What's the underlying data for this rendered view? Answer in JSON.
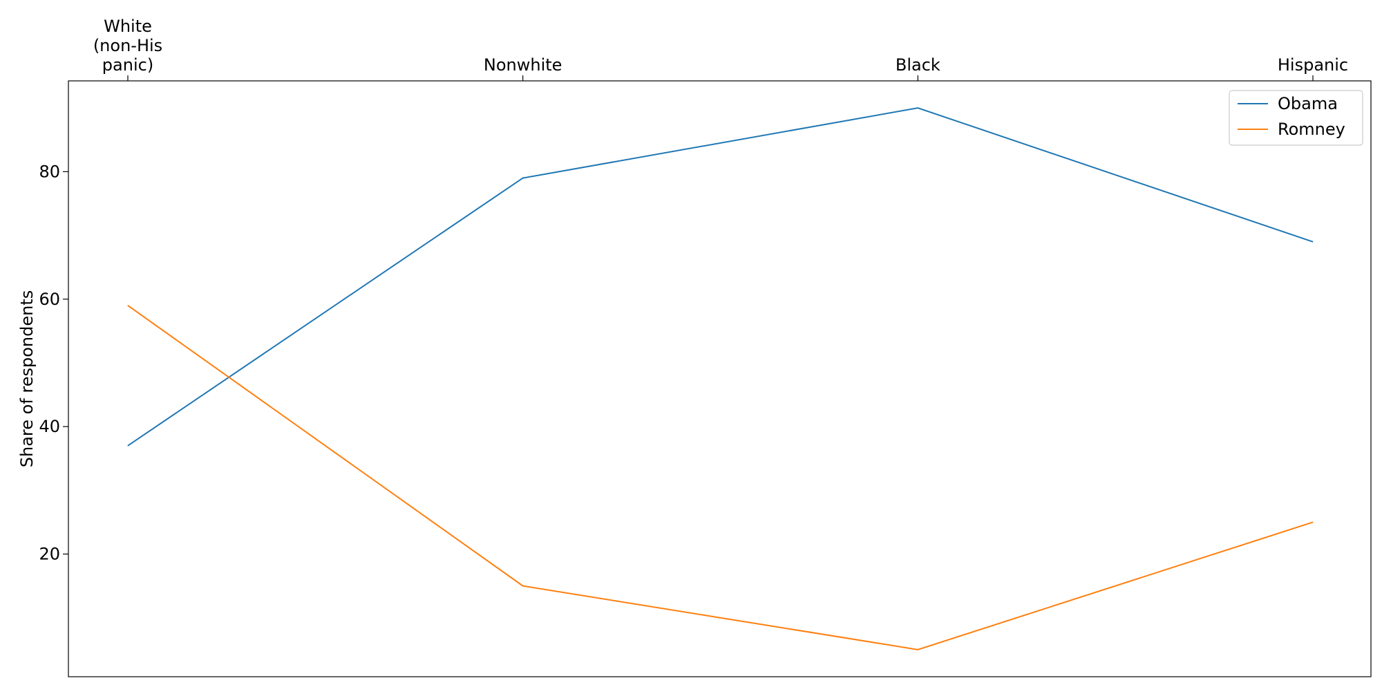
{
  "chart_data": {
    "type": "line",
    "title": "",
    "xlabel": "",
    "ylabel": "Share of respondents",
    "categories": [
      [
        "White",
        "(non-His",
        "panic)"
      ],
      [
        "Nonwhite"
      ],
      [
        "Black"
      ],
      [
        "Hispanic"
      ]
    ],
    "series": [
      {
        "name": "Obama",
        "values": [
          37,
          79,
          90,
          69
        ],
        "color": "#1f77b4"
      },
      {
        "name": "Romney",
        "values": [
          59,
          15,
          5,
          25
        ],
        "color": "#ff7f0e"
      }
    ],
    "yticks": [
      20,
      40,
      60,
      80
    ],
    "ylim": [
      0.75,
      94.25
    ],
    "x_axis_position": "top",
    "legend": "top-right",
    "grid": false
  }
}
